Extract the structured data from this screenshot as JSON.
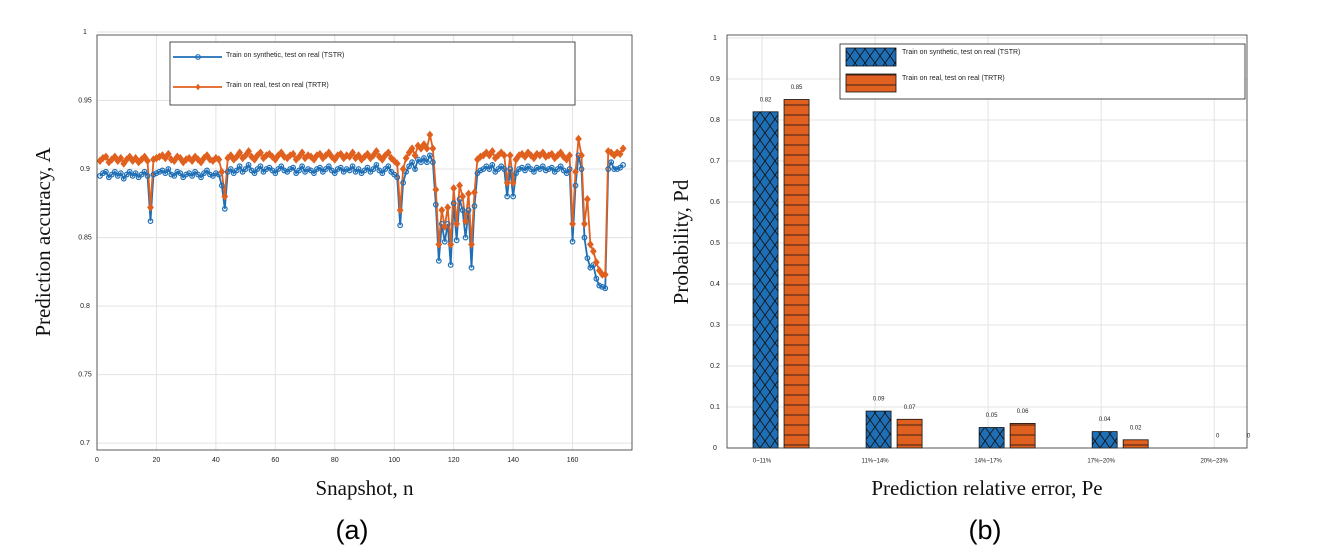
{
  "chart_data": [
    {
      "type": "line",
      "caption": "(a)",
      "xlabel": "Snapshot, n",
      "ylabel": "Prediction accuracy, A",
      "xlim": [
        0,
        180
      ],
      "xticks": [
        0,
        20,
        40,
        60,
        80,
        100,
        120,
        140,
        160
      ],
      "ylim": [
        0.695,
        1
      ],
      "yticks": [
        0.7,
        0.75,
        0.8,
        0.85,
        0.9,
        0.95,
        1
      ],
      "grid": true,
      "legend": "top",
      "x": [
        1,
        2,
        3,
        4,
        5,
        6,
        7,
        8,
        9,
        10,
        11,
        12,
        13,
        14,
        15,
        16,
        17,
        18,
        19,
        20,
        21,
        22,
        23,
        24,
        25,
        26,
        27,
        28,
        29,
        30,
        31,
        32,
        33,
        34,
        35,
        36,
        37,
        38,
        39,
        40,
        41,
        42,
        43,
        44,
        45,
        46,
        47,
        48,
        49,
        50,
        51,
        52,
        53,
        54,
        55,
        56,
        57,
        58,
        59,
        60,
        61,
        62,
        63,
        64,
        65,
        66,
        67,
        68,
        69,
        70,
        71,
        72,
        73,
        74,
        75,
        76,
        77,
        78,
        79,
        80,
        81,
        82,
        83,
        84,
        85,
        86,
        87,
        88,
        89,
        90,
        91,
        92,
        93,
        94,
        95,
        96,
        97,
        98,
        99,
        100,
        101,
        102,
        103,
        104,
        105,
        106,
        107,
        108,
        109,
        110,
        111,
        112,
        113,
        114,
        115,
        116,
        117,
        118,
        119,
        120,
        121,
        122,
        123,
        124,
        125,
        126,
        127,
        128,
        129,
        130,
        131,
        132,
        133,
        134,
        135,
        136,
        137,
        138,
        139,
        140,
        141,
        142,
        143,
        144,
        145,
        146,
        147,
        148,
        149,
        150,
        151,
        152,
        153,
        154,
        155,
        156,
        157,
        158,
        159,
        160,
        161,
        162,
        163,
        164,
        165,
        166,
        167,
        168,
        169,
        170,
        171,
        172,
        173,
        174,
        175,
        176,
        177
      ],
      "series": [
        {
          "name": "Train on synthetic, test on real (TSTR)",
          "color": "#1f6fb6",
          "marker": "circle",
          "values": [
            0.895,
            0.897,
            0.898,
            0.894,
            0.896,
            0.898,
            0.895,
            0.897,
            0.893,
            0.896,
            0.898,
            0.895,
            0.897,
            0.894,
            0.896,
            0.898,
            0.895,
            0.862,
            0.896,
            0.897,
            0.898,
            0.899,
            0.897,
            0.9,
            0.896,
            0.895,
            0.898,
            0.897,
            0.894,
            0.896,
            0.897,
            0.895,
            0.898,
            0.896,
            0.894,
            0.897,
            0.899,
            0.896,
            0.895,
            0.897,
            0.896,
            0.888,
            0.871,
            0.898,
            0.9,
            0.897,
            0.899,
            0.902,
            0.898,
            0.9,
            0.903,
            0.899,
            0.897,
            0.9,
            0.902,
            0.898,
            0.9,
            0.901,
            0.899,
            0.897,
            0.9,
            0.902,
            0.899,
            0.898,
            0.9,
            0.901,
            0.897,
            0.899,
            0.902,
            0.898,
            0.9,
            0.899,
            0.897,
            0.9,
            0.901,
            0.898,
            0.9,
            0.902,
            0.899,
            0.897,
            0.9,
            0.901,
            0.898,
            0.9,
            0.899,
            0.902,
            0.898,
            0.9,
            0.897,
            0.899,
            0.901,
            0.898,
            0.9,
            0.903,
            0.899,
            0.897,
            0.9,
            0.902,
            0.898,
            0.896,
            0.894,
            0.859,
            0.89,
            0.898,
            0.902,
            0.905,
            0.9,
            0.907,
            0.905,
            0.908,
            0.905,
            0.91,
            0.905,
            0.874,
            0.833,
            0.86,
            0.847,
            0.86,
            0.83,
            0.875,
            0.848,
            0.878,
            0.87,
            0.85,
            0.87,
            0.828,
            0.873,
            0.897,
            0.899,
            0.9,
            0.902,
            0.9,
            0.903,
            0.898,
            0.9,
            0.902,
            0.9,
            0.88,
            0.9,
            0.88,
            0.897,
            0.9,
            0.901,
            0.899,
            0.902,
            0.9,
            0.898,
            0.901,
            0.9,
            0.902,
            0.899,
            0.9,
            0.901,
            0.898,
            0.9,
            0.902,
            0.899,
            0.897,
            0.9,
            0.847,
            0.888,
            0.91,
            0.9,
            0.85,
            0.835,
            0.828,
            0.83,
            0.82,
            0.815,
            0.814,
            0.813,
            0.9,
            0.905,
            0.9,
            0.9,
            0.901,
            0.903
          ]
        },
        {
          "name": "Train on real, test on real (TRTR)",
          "color": "#e0611f",
          "marker": "diamond",
          "values": [
            0.906,
            0.908,
            0.909,
            0.905,
            0.907,
            0.909,
            0.906,
            0.908,
            0.904,
            0.907,
            0.909,
            0.906,
            0.908,
            0.905,
            0.907,
            0.909,
            0.906,
            0.872,
            0.907,
            0.908,
            0.909,
            0.91,
            0.908,
            0.911,
            0.907,
            0.906,
            0.909,
            0.908,
            0.905,
            0.907,
            0.908,
            0.906,
            0.909,
            0.907,
            0.905,
            0.908,
            0.91,
            0.907,
            0.906,
            0.908,
            0.907,
            0.898,
            0.88,
            0.908,
            0.91,
            0.907,
            0.909,
            0.912,
            0.908,
            0.91,
            0.913,
            0.909,
            0.907,
            0.91,
            0.912,
            0.908,
            0.91,
            0.911,
            0.909,
            0.907,
            0.91,
            0.912,
            0.909,
            0.908,
            0.91,
            0.911,
            0.907,
            0.909,
            0.912,
            0.908,
            0.91,
            0.909,
            0.907,
            0.91,
            0.911,
            0.908,
            0.91,
            0.912,
            0.909,
            0.907,
            0.91,
            0.911,
            0.908,
            0.91,
            0.909,
            0.912,
            0.908,
            0.91,
            0.907,
            0.909,
            0.911,
            0.908,
            0.91,
            0.913,
            0.909,
            0.907,
            0.91,
            0.912,
            0.908,
            0.906,
            0.904,
            0.87,
            0.9,
            0.908,
            0.912,
            0.915,
            0.91,
            0.917,
            0.915,
            0.918,
            0.915,
            0.925,
            0.915,
            0.885,
            0.845,
            0.87,
            0.858,
            0.872,
            0.845,
            0.886,
            0.86,
            0.888,
            0.88,
            0.862,
            0.882,
            0.845,
            0.883,
            0.907,
            0.909,
            0.91,
            0.912,
            0.91,
            0.913,
            0.908,
            0.91,
            0.912,
            0.91,
            0.89,
            0.91,
            0.89,
            0.907,
            0.91,
            0.911,
            0.909,
            0.912,
            0.91,
            0.908,
            0.911,
            0.91,
            0.912,
            0.909,
            0.91,
            0.911,
            0.908,
            0.91,
            0.912,
            0.909,
            0.907,
            0.91,
            0.86,
            0.898,
            0.922,
            0.91,
            0.86,
            0.878,
            0.845,
            0.84,
            0.832,
            0.826,
            0.823,
            0.823,
            0.913,
            0.912,
            0.91,
            0.912,
            0.911,
            0.915
          ]
        }
      ]
    },
    {
      "type": "bar",
      "caption": "(b)",
      "xlabel": "Prediction relative error, Pe",
      "ylabel": "Probability, Pd",
      "categories": [
        "0~11%",
        "11%~14%",
        "14%~17%",
        "17%~20%",
        "20%~23%"
      ],
      "ylim": [
        0,
        1
      ],
      "yticks": [
        0,
        0.1,
        0.2,
        0.3,
        0.4,
        0.5,
        0.6,
        0.7,
        0.8,
        0.9,
        1
      ],
      "grid": true,
      "legend": "top",
      "series": [
        {
          "name": "Train on synthetic, test on real (TSTR)",
          "color": "#1f6fb6",
          "hatch": "cross",
          "values": [
            0.82,
            0.09,
            0.05,
            0.04,
            0
          ]
        },
        {
          "name": "Train on real, test on real (TRTR)",
          "color": "#e0611f",
          "hatch": "horizontal",
          "values": [
            0.85,
            0.07,
            0.06,
            0.02,
            0
          ]
        }
      ]
    }
  ]
}
